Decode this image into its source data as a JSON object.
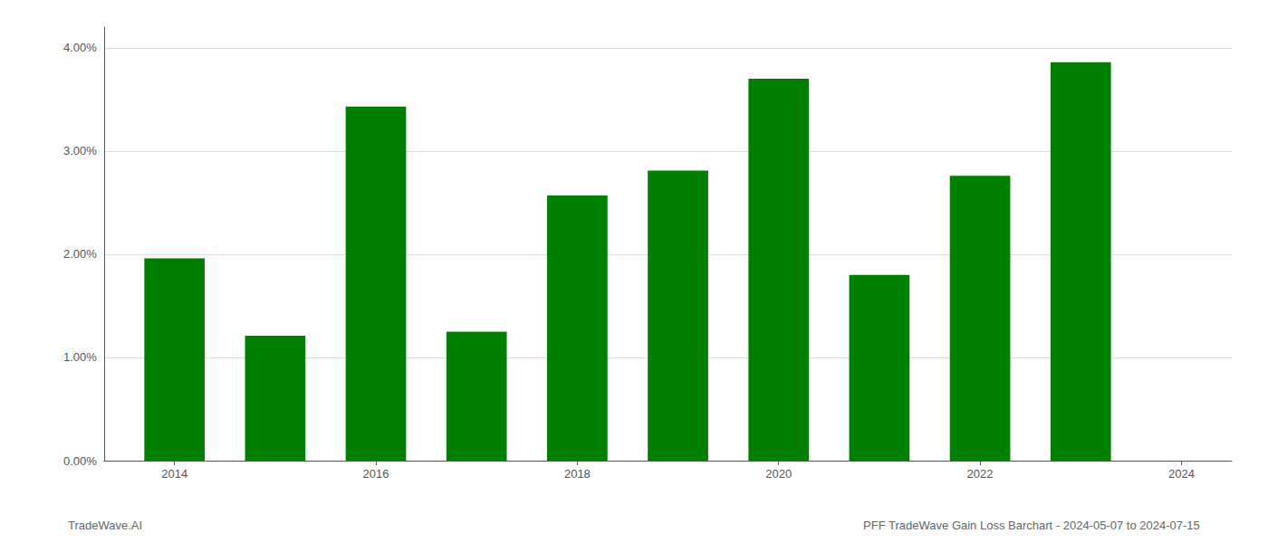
{
  "chart_data": {
    "type": "bar",
    "title": "PFF TradeWave Gain Loss Barchart - 2024-05-07 to 2024-07-15",
    "annotations": [
      "TradeWave.AI"
    ],
    "x": [
      2014,
      2015,
      2016,
      2017,
      2018,
      2019,
      2020,
      2021,
      2022,
      2023
    ],
    "values": [
      0.0196,
      0.0121,
      0.0343,
      0.0125,
      0.0257,
      0.0281,
      0.037,
      0.018,
      0.0276,
      0.0386
    ],
    "color": "#008000",
    "xlim": [
      2013.3,
      2024.5
    ],
    "xticks": [
      2014,
      2016,
      2018,
      2020,
      2022,
      2024
    ],
    "ylim": [
      0.0,
      0.042
    ],
    "yticks": [
      {
        "value": 0.0,
        "label": "0.00%"
      },
      {
        "value": 0.01,
        "label": "1.00%"
      },
      {
        "value": 0.02,
        "label": "2.00%"
      },
      {
        "value": 0.03,
        "label": "3.00%"
      },
      {
        "value": 0.04,
        "label": "4.00%"
      }
    ],
    "grid": true
  }
}
